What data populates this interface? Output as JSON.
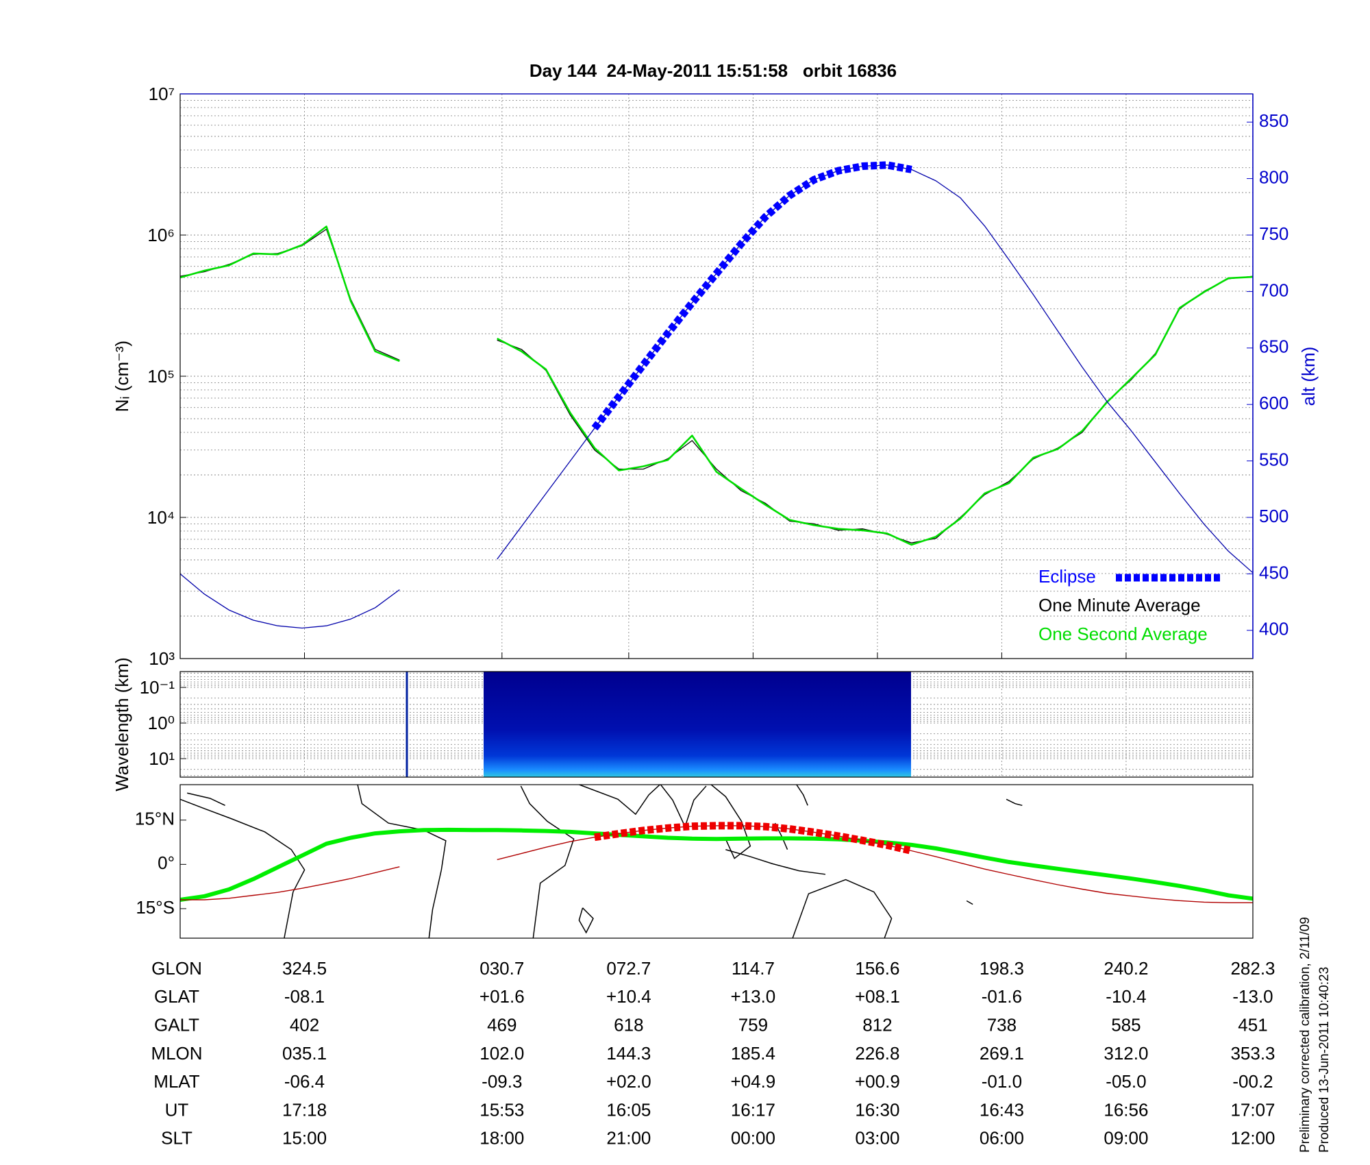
{
  "chart_data": [
    {
      "type": "line",
      "title": "Day 144  24-May-2011 15:51:58   orbit 16836",
      "ylabel": "Nᵢ (cm⁻³)",
      "y2label": "alt (km)",
      "log_y": true,
      "grid": true,
      "legend": "lower right",
      "ylim": [
        1000,
        10000000
      ],
      "yticks": [
        {
          "value": 1000,
          "label": "10³"
        },
        {
          "value": 10000,
          "label": "10⁴"
        },
        {
          "value": 100000,
          "label": "10⁵"
        },
        {
          "value": 1000000,
          "label": "10⁶"
        },
        {
          "value": 10000000,
          "label": "10⁷"
        }
      ],
      "y2lim": [
        375,
        875
      ],
      "y2ticks": [
        400,
        450,
        500,
        550,
        600,
        650,
        700,
        750,
        800,
        850
      ],
      "series": [
        {
          "name": "Eclipse",
          "color": "#0000ff",
          "axis": "y2",
          "line_style": "thick-dashed",
          "values": [
            null,
            null,
            null,
            null,
            null,
            null,
            null,
            null,
            null,
            null,
            null,
            null,
            null,
            null,
            null,
            null,
            null,
            579,
            607,
            635,
            663,
            690,
            716,
            742,
            766,
            785,
            799,
            807,
            811,
            812,
            808,
            null,
            null,
            null,
            null,
            null,
            null,
            null,
            null,
            null,
            null,
            null,
            null,
            null,
            null
          ]
        },
        {
          "name": "One Minute Average",
          "color": "#000000",
          "values": [
            510000,
            550000,
            620000,
            730000,
            740000,
            840000,
            1100000,
            350000,
            155000,
            130000,
            null,
            null,
            null,
            180000,
            155000,
            110000,
            53000,
            30000,
            22000,
            22000,
            26000,
            35000,
            22000,
            15500,
            12600,
            9400,
            9000,
            8100,
            8300,
            7600,
            6600,
            7100,
            10000,
            14500,
            18000,
            26000,
            31000,
            40000,
            66000,
            94000,
            145000,
            300000,
            400000,
            490000,
            510000
          ]
        },
        {
          "name": "One Second Average",
          "color": "#00dd00",
          "values": [
            500000,
            560000,
            610000,
            740000,
            730000,
            850000,
            1150000,
            340000,
            150000,
            128000,
            null,
            null,
            null,
            185000,
            150000,
            112000,
            55000,
            31000,
            21500,
            23000,
            25500,
            38000,
            21000,
            16000,
            12300,
            9600,
            8800,
            8300,
            8100,
            7700,
            6400,
            7300,
            9800,
            14800,
            17500,
            26500,
            30500,
            41000,
            65000,
            96000,
            142000,
            305000,
            395000,
            495000,
            505000
          ]
        },
        {
          "color": "#0000aa",
          "axis": "y2",
          "values": [
            450,
            432,
            418,
            409,
            404,
            402,
            404,
            410,
            420,
            436,
            null,
            null,
            null,
            463,
            492,
            521,
            550,
            579,
            607,
            635,
            663,
            690,
            716,
            742,
            766,
            785,
            799,
            807,
            811,
            812,
            808,
            798,
            783,
            758,
            728,
            697,
            665,
            633,
            603,
            577,
            549,
            521,
            494,
            470,
            451
          ]
        }
      ]
    },
    {
      "type": "heatmap",
      "ylabel": "Wavelength (km)",
      "log_y": true,
      "y_inverted": true,
      "grid": true,
      "ylim": [
        0.036,
        33
      ],
      "yticks": [
        {
          "value": 0.1,
          "label": "10⁻¹"
        },
        {
          "value": 1,
          "label": "10⁰"
        },
        {
          "value": 10,
          "label": "10¹"
        }
      ]
    },
    {
      "type": "map",
      "ylim": [
        -25,
        27
      ],
      "yticks": [
        {
          "value": 15,
          "label": "15°N"
        },
        {
          "value": 0,
          "label": "0°"
        },
        {
          "value": -15,
          "label": "15°S"
        }
      ],
      "series": [
        {
          "color": "#00ee00",
          "line_style": "thick",
          "values": [
            -12,
            -10.8,
            -8.5,
            -5,
            -1,
            3,
            7,
            9,
            10.5,
            11.2,
            11.6,
            11.7,
            11.6,
            11.6,
            11.5,
            11.3,
            11,
            10.5,
            10,
            9.5,
            9,
            8.7,
            8.6,
            8.7,
            8.8,
            8.8,
            8.7,
            8.5,
            8,
            7.4,
            6.6,
            5.4,
            3.9,
            2.3,
            0.8,
            -0.4,
            -1.5,
            -2.6,
            -3.7,
            -4.8,
            -6,
            -7.3,
            -8.8,
            -10.5,
            -11.6
          ]
        },
        {
          "color": "#b00000",
          "line_style": "thin",
          "values": [
            -12,
            -12,
            -11.5,
            -10.5,
            -9.5,
            -8.1,
            -6.5,
            -4.8,
            -2.8,
            -0.8,
            null,
            null,
            null,
            1.6,
            3.7,
            5.8,
            7.7,
            9.2,
            10.4,
            11.5,
            12.3,
            12.9,
            13.1,
            13.1,
            12.8,
            12,
            10.9,
            9.6,
            8.1,
            6.5,
            4.6,
            2.6,
            0.5,
            -1.6,
            -3.4,
            -5.2,
            -6.9,
            -8.4,
            -9.8,
            -10.7,
            -11.6,
            -12.3,
            -12.8,
            -13,
            -13
          ]
        },
        {
          "color": "#ee0000",
          "line_style": "thick-dashed",
          "values": [
            null,
            null,
            null,
            null,
            null,
            null,
            null,
            null,
            null,
            null,
            null,
            null,
            null,
            null,
            null,
            null,
            null,
            9.2,
            10.4,
            11.5,
            12.3,
            12.9,
            13.1,
            13.1,
            12.8,
            12,
            10.9,
            9.6,
            8.1,
            6.5,
            4.6,
            null,
            null,
            null,
            null,
            null,
            null,
            null,
            null,
            null,
            null,
            null,
            null,
            null,
            null
          ]
        }
      ]
    }
  ],
  "table": {
    "rows": [
      {
        "label": "GLON",
        "values": [
          "324.5",
          "030.7",
          "072.7",
          "114.7",
          "156.6",
          "198.3",
          "240.2",
          "282.3"
        ]
      },
      {
        "label": "GLAT",
        "values": [
          "-08.1",
          "+01.6",
          "+10.4",
          "+13.0",
          "+08.1",
          "-01.6",
          "-10.4",
          "-13.0"
        ]
      },
      {
        "label": "GALT",
        "values": [
          "402",
          "469",
          "618",
          "759",
          "812",
          "738",
          "585",
          "451"
        ]
      },
      {
        "label": "MLON",
        "values": [
          "035.1",
          "102.0",
          "144.3",
          "185.4",
          "226.8",
          "269.1",
          "312.0",
          "353.3"
        ]
      },
      {
        "label": "MLAT",
        "values": [
          "-06.4",
          "-09.3",
          "+02.0",
          "+04.9",
          "+00.9",
          "-01.0",
          "-05.0",
          "-00.2"
        ]
      },
      {
        "label": "UT",
        "values": [
          "17:18",
          "15:53",
          "16:05",
          "16:17",
          "16:30",
          "16:43",
          "16:56",
          "17:07"
        ]
      },
      {
        "label": "SLT",
        "values": [
          "15:00",
          "18:00",
          "21:00",
          "00:00",
          "03:00",
          "06:00",
          "09:00",
          "12:00"
        ]
      }
    ]
  },
  "notes": [
    "Preliminary corrected calibration, 2/11/09",
    "Produced 13-Jun-2011 10:40:23"
  ]
}
